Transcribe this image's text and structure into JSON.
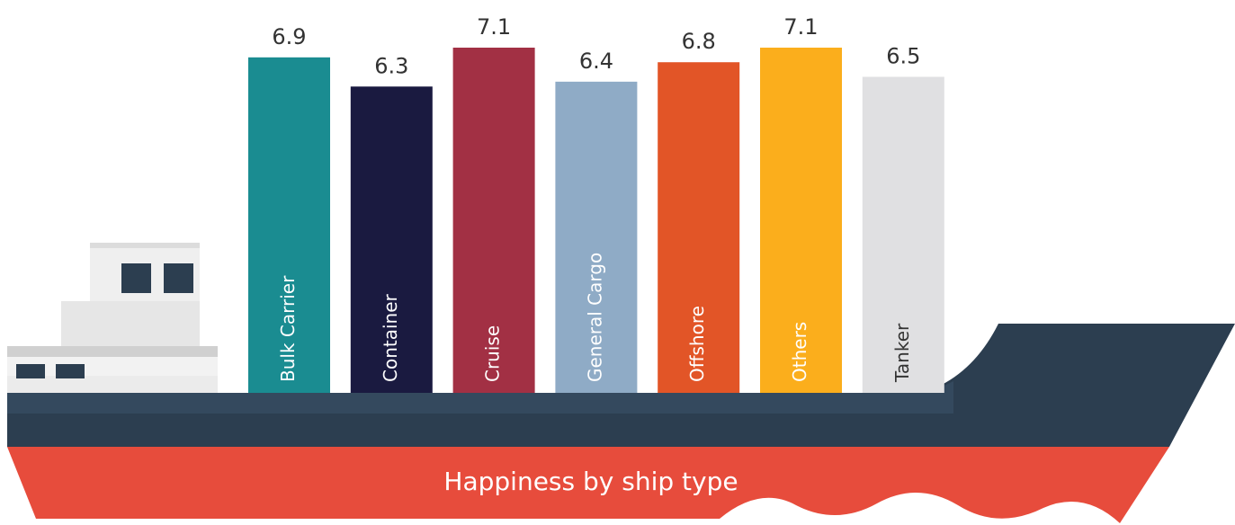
{
  "chart_data": {
    "type": "bar",
    "title": "Happiness by ship type",
    "categories": [
      "Bulk Carrier",
      "Container",
      "Cruise",
      "General Cargo",
      "Offshore",
      "Others",
      "Tanker"
    ],
    "values": [
      6.9,
      6.3,
      7.1,
      6.4,
      6.8,
      7.1,
      6.5
    ],
    "colors": [
      "#1a8c91",
      "#1a1a40",
      "#a23044",
      "#8fabc6",
      "#e25527",
      "#fbae1c",
      "#e0e0e2"
    ]
  }
}
